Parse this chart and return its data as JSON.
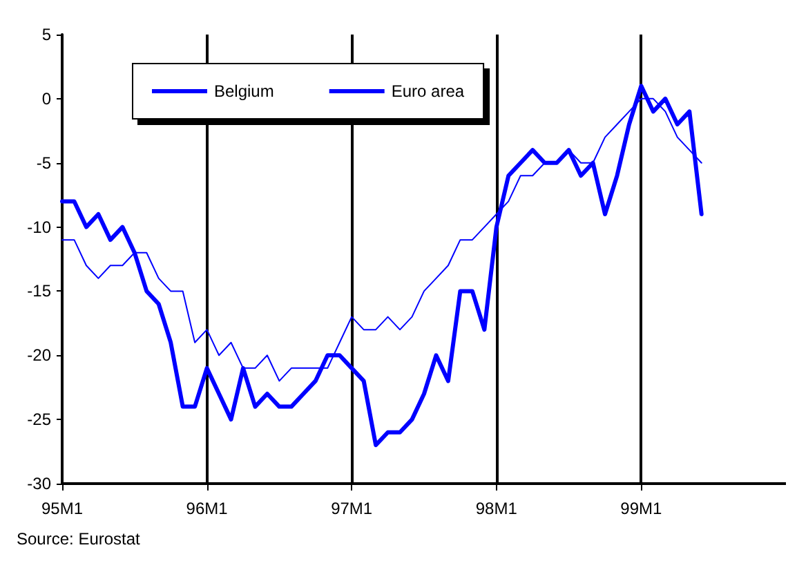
{
  "chart_data": {
    "type": "line",
    "categories": [
      "95M1",
      null,
      null,
      null,
      null,
      null,
      null,
      null,
      null,
      null,
      null,
      null,
      "96M1",
      null,
      null,
      null,
      null,
      null,
      null,
      null,
      null,
      null,
      null,
      null,
      "97M1",
      null,
      null,
      null,
      null,
      null,
      null,
      null,
      null,
      null,
      null,
      null,
      "98M1",
      null,
      null,
      null,
      null,
      null,
      null,
      null,
      null,
      null,
      null,
      null,
      "99M1",
      null,
      null,
      null,
      null,
      null,
      null,
      null,
      null,
      null,
      null,
      null,
      null
    ],
    "series": [
      {
        "name": "Belgium",
        "color": "#0000ff",
        "values": [
          -8,
          -8,
          -10,
          -9,
          -11,
          -10,
          -12,
          -15,
          -16,
          -19,
          -24,
          -24,
          -21,
          -23,
          -25,
          -21,
          -24,
          -23,
          -24,
          -24,
          -23,
          -22,
          -20,
          -20,
          -21,
          -22,
          -27,
          -26,
          -26,
          -25,
          -23,
          -20,
          -22,
          -15,
          -15,
          -18,
          -10,
          -6,
          -5,
          -4,
          -5,
          -5,
          -4,
          -6,
          -5,
          -9,
          -6,
          -2,
          1,
          -1,
          0,
          -2,
          -1,
          -9,
          null,
          null,
          null,
          null,
          null,
          null,
          null
        ]
      },
      {
        "name": "Euro area",
        "color": "#0000ff",
        "values": [
          -11,
          -11,
          -13,
          -14,
          -13,
          -13,
          -12,
          -12,
          -14,
          -15,
          -15,
          -19,
          -18,
          -20,
          -19,
          -21,
          -21,
          -20,
          -22,
          -21,
          -21,
          -21,
          -21,
          -19,
          -17,
          -18,
          -18,
          -17,
          -18,
          -17,
          -15,
          -14,
          -13,
          -11,
          -11,
          -10,
          -9,
          -8,
          -6,
          -6,
          -5,
          -5,
          -4,
          -5,
          -5,
          -3,
          -2,
          -1,
          0,
          0,
          -1,
          -3,
          -4,
          -5,
          null,
          null,
          null,
          null,
          null,
          null,
          null
        ]
      }
    ],
    "ylim": [
      -30,
      5
    ],
    "yticks": [
      -30,
      -25,
      -20,
      -15,
      -10,
      -5,
      0,
      5
    ],
    "grid": "x",
    "legend": "top left",
    "marker": "none",
    "line_style": "solid",
    "annotations": [
      "Source: Eurostat"
    ]
  }
}
